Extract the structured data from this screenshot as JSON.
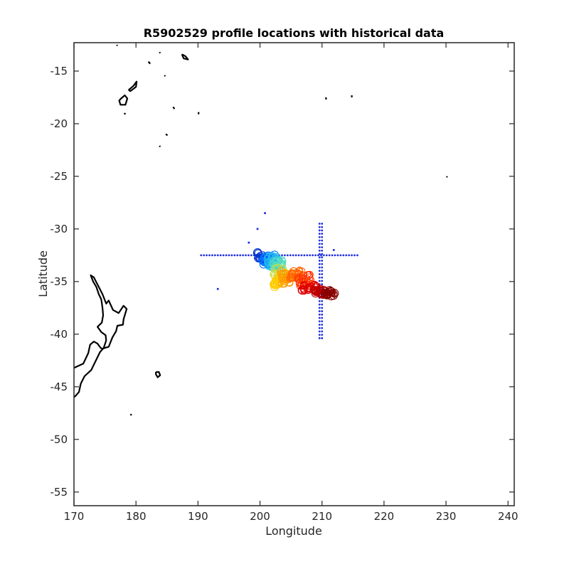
{
  "chart_data": {
    "type": "scatter",
    "title": "R5902529 profile locations with historical data",
    "xlabel": "Longitude",
    "ylabel": "Latitude",
    "xlim": [
      170,
      241
    ],
    "ylim": [
      -56.3,
      -12.3
    ],
    "xticks": [
      170,
      180,
      190,
      200,
      210,
      220,
      230,
      240
    ],
    "yticks": [
      -15,
      -20,
      -25,
      -30,
      -35,
      -40,
      -45,
      -50,
      -55
    ],
    "grid": false,
    "colors": {
      "historical": "#1f2fe0",
      "coastline": "#000000",
      "axes": "#262626",
      "profile_colormap": [
        "#0033cc",
        "#0077ff",
        "#22bbee",
        "#55ddbb",
        "#ccdd44",
        "#ffcc00",
        "#ff8800",
        "#ff3300",
        "#dd0000",
        "#990000"
      ]
    },
    "historical_points": {
      "horizontal_line": {
        "lat": -32.5,
        "lon_start": 190.5,
        "lon_end": 216,
        "step": 0.45
      },
      "vertical_line": {
        "lon": 209.8,
        "lat_start": -29.5,
        "lat_end": -40.5,
        "step": 0.32
      },
      "scattered": [
        [
          200.8,
          -28.5
        ],
        [
          199.6,
          -30
        ],
        [
          193.2,
          -35.7
        ],
        [
          198.2,
          -31.3
        ],
        [
          211.9,
          -32
        ],
        [
          199.2,
          -32.8
        ],
        [
          200.4,
          -33.2
        ]
      ]
    },
    "profile_clusters": [
      {
        "lon": 200.6,
        "lat": -32.7,
        "spread_lon": 1.1,
        "spread_lat": 0.5,
        "color": "#0033cc"
      },
      {
        "lon": 201.4,
        "lat": -32.9,
        "spread_lon": 1.0,
        "spread_lat": 0.5,
        "color": "#0077ff"
      },
      {
        "lon": 202.1,
        "lat": -33.1,
        "spread_lon": 0.9,
        "spread_lat": 0.5,
        "color": "#22bbee"
      },
      {
        "lon": 202.9,
        "lat": -33.4,
        "spread_lon": 0.8,
        "spread_lat": 0.5,
        "color": "#55ddbb"
      },
      {
        "lon": 203.2,
        "lat": -34.3,
        "spread_lon": 1.0,
        "spread_lat": 0.6,
        "color": "#ccdd44"
      },
      {
        "lon": 202.9,
        "lat": -35.0,
        "spread_lon": 0.8,
        "spread_lat": 0.5,
        "color": "#ffcc00"
      },
      {
        "lon": 204.3,
        "lat": -34.6,
        "spread_lon": 0.9,
        "spread_lat": 0.6,
        "color": "#ff9900"
      },
      {
        "lon": 205.8,
        "lat": -34.4,
        "spread_lon": 1.0,
        "spread_lat": 0.5,
        "color": "#ff6600"
      },
      {
        "lon": 207.2,
        "lat": -34.9,
        "spread_lon": 1.2,
        "spread_lat": 0.6,
        "color": "#ff3300"
      },
      {
        "lon": 208.0,
        "lat": -35.6,
        "spread_lon": 1.2,
        "spread_lat": 0.4,
        "color": "#dd0000"
      },
      {
        "lon": 209.8,
        "lat": -36.0,
        "spread_lon": 1.2,
        "spread_lat": 0.3,
        "color": "#bb0000"
      },
      {
        "lon": 211.2,
        "lat": -36.1,
        "spread_lon": 0.8,
        "spread_lat": 0.3,
        "color": "#880000"
      }
    ],
    "coastlines": [
      [
        [
          170,
          -43.2
        ],
        [
          171.5,
          -42.8
        ],
        [
          172.3,
          -41.8
        ],
        [
          172.6,
          -41
        ],
        [
          173.2,
          -40.7
        ],
        [
          173.8,
          -40.9
        ],
        [
          174.3,
          -41.3
        ],
        [
          174.6,
          -41.4
        ],
        [
          175,
          -41.3
        ],
        [
          175.6,
          -41.2
        ],
        [
          176.2,
          -40.3
        ],
        [
          176.8,
          -39.7
        ],
        [
          177,
          -39.2
        ],
        [
          177.9,
          -39.1
        ],
        [
          178.0,
          -38.6
        ],
        [
          178.5,
          -37.6
        ],
        [
          178.0,
          -37.3
        ],
        [
          177.2,
          -38.0
        ],
        [
          176.3,
          -37.7
        ],
        [
          175.6,
          -36.8
        ],
        [
          175.2,
          -37.1
        ],
        [
          174.8,
          -36.5
        ],
        [
          174.6,
          -36.2
        ],
        [
          173.9,
          -35.4
        ],
        [
          173.2,
          -34.6
        ],
        [
          172.7,
          -34.4
        ],
        [
          173.1,
          -35.0
        ],
        [
          173.6,
          -35.5
        ],
        [
          174.0,
          -36.2
        ],
        [
          174.4,
          -36.7
        ],
        [
          174.6,
          -37.5
        ],
        [
          174.7,
          -38.2
        ],
        [
          174.5,
          -38.9
        ],
        [
          173.8,
          -39.3
        ],
        [
          174.4,
          -39.8
        ],
        [
          175.1,
          -40.1
        ],
        [
          175.2,
          -40.6
        ],
        [
          174.8,
          -41.3
        ],
        [
          174.2,
          -41.7
        ],
        [
          173.7,
          -42.3
        ],
        [
          173.2,
          -42.9
        ],
        [
          172.8,
          -43.4
        ],
        [
          171.7,
          -44.0
        ],
        [
          171.1,
          -44.7
        ],
        [
          170.8,
          -45.5
        ],
        [
          170.2,
          -45.9
        ],
        [
          170,
          -46.0
        ]
      ],
      [
        [
          183.2,
          -43.6
        ],
        [
          183.7,
          -43.6
        ],
        [
          183.9,
          -43.9
        ],
        [
          183.5,
          -44.1
        ],
        [
          183.2,
          -43.8
        ],
        [
          183.2,
          -43.6
        ]
      ],
      [
        [
          179.1,
          -47.6
        ],
        [
          179.3,
          -47.7
        ]
      ],
      [
        [
          177.6,
          -17.6
        ],
        [
          178.2,
          -17.3
        ],
        [
          178.6,
          -17.6
        ],
        [
          178.3,
          -18.2
        ],
        [
          177.5,
          -18.2
        ],
        [
          177.3,
          -17.8
        ],
        [
          177.6,
          -17.6
        ]
      ],
      [
        [
          178.8,
          -16.8
        ],
        [
          179.6,
          -16.4
        ],
        [
          180.1,
          -16.0
        ],
        [
          180.0,
          -16.5
        ],
        [
          179.1,
          -16.9
        ],
        [
          178.8,
          -16.8
        ]
      ],
      [
        [
          178.1,
          -19.0
        ],
        [
          178.3,
          -19.1
        ]
      ],
      [
        [
          187.4,
          -13.4
        ],
        [
          188.0,
          -13.6
        ],
        [
          188.4,
          -13.9
        ],
        [
          187.7,
          -13.8
        ],
        [
          187.4,
          -13.4
        ]
      ],
      [
        [
          182.0,
          -14.1
        ],
        [
          182.3,
          -14.3
        ]
      ],
      [
        [
          183.8,
          -13.2
        ],
        [
          183.9,
          -13.3
        ]
      ],
      [
        [
          184.6,
          -15.4
        ],
        [
          184.7,
          -15.5
        ]
      ],
      [
        [
          186.0,
          -18.4
        ],
        [
          186.2,
          -18.6
        ]
      ],
      [
        [
          190.1,
          -18.9
        ],
        [
          190.1,
          -19.1
        ]
      ],
      [
        [
          184.8,
          -21.0
        ],
        [
          185.1,
          -21.1
        ]
      ],
      [
        [
          183.8,
          -22.1
        ],
        [
          183.9,
          -22.2
        ]
      ],
      [
        [
          176.9,
          -12.5
        ],
        [
          177.0,
          -12.6
        ]
      ],
      [
        [
          210.6,
          -17.5
        ],
        [
          210.7,
          -17.7
        ]
      ],
      [
        [
          214.8,
          -17.3
        ],
        [
          214.8,
          -17.5
        ]
      ],
      [
        [
          230.2,
          -25.0
        ],
        [
          230.1,
          -25.1
        ]
      ]
    ]
  }
}
